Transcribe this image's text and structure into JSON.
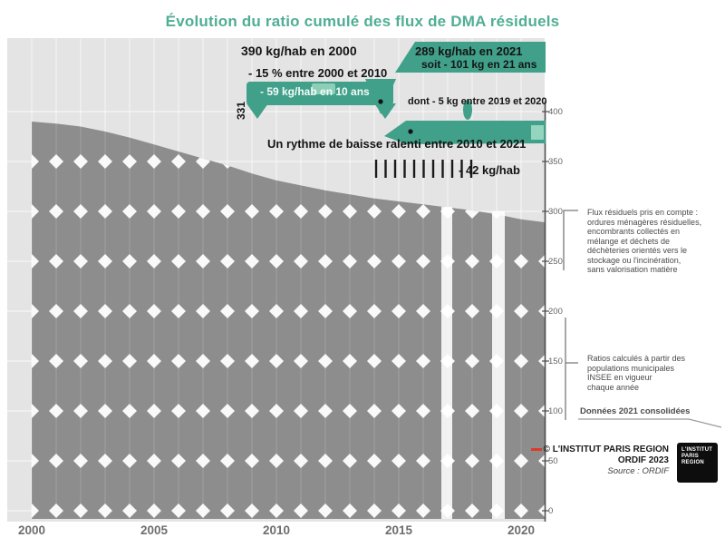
{
  "title": "Évolution du ratio cumulé des flux de DMA résiduels",
  "annotations": {
    "line_a": "390 kg/hab en 2000",
    "box_b_line1": "289 kg/hab en 2021",
    "box_b_line2": "soit - 101 kg en 21 ans",
    "box_a_label": "- 15 % entre 2000 et 2010",
    "box_a_value": "- 59 kg/hab en 10 ans",
    "line_b2": "dont - 5 kg entre 2019 et 2020",
    "line_c1": "Un rythme de baisse ralenti entre 2010 et 2021",
    "line_c2": "- 42 kg/hab",
    "rotated_value": "331"
  },
  "notes": {
    "note1_lines": [
      "Flux résiduels pris en compte :",
      "ordures ménagères résiduelles,",
      "encombrants collectés en",
      "mélange et déchets de",
      "déchèteries orientés vers le",
      "stockage ou l'incinération,",
      "sans valorisation matière"
    ],
    "note2_lines": [
      "Ratios calculés à partir des",
      "populations municipales",
      "INSEE en vigueur",
      "chaque année"
    ],
    "footer": "Données 2021 consolidées"
  },
  "axes": {
    "y": {
      "labels": [
        "400",
        "350",
        "300",
        "250",
        "200",
        "150",
        "100",
        "50",
        "0"
      ]
    },
    "x": {
      "labels": [
        "2000",
        "2005",
        "2010",
        "2015",
        "2020"
      ]
    }
  },
  "credits": {
    "line1": "© L'INSTITUT PARIS REGION",
    "line2": "ORDIF 2023",
    "source": "Source : ORDIF",
    "logo_line1": "L'INSTITUT",
    "logo_line2": "PARIS",
    "logo_line3": "REGION"
  },
  "colors": {
    "teal": "#41a08a",
    "teal_light": "#9fd9c3",
    "title_teal": "#4fae94",
    "area_gray": "#8d8d8d",
    "plot_bg": "#e4e4e4",
    "credit_red": "#e03a27"
  },
  "chart_data": {
    "type": "area",
    "title": "Évolution du ratio cumulé des flux de DMA résiduels",
    "unit": "kg/hab",
    "x": [
      2000,
      2001,
      2002,
      2003,
      2004,
      2005,
      2006,
      2007,
      2008,
      2009,
      2010,
      2011,
      2012,
      2013,
      2014,
      2015,
      2016,
      2017,
      2018,
      2019,
      2020,
      2021
    ],
    "series": [
      {
        "name": "Ratio cumulé des flux de DMA résiduels (kg/hab)",
        "values": [
          390,
          388,
          385,
          380,
          374,
          367,
          360,
          353,
          346,
          338,
          331,
          326,
          321,
          317,
          313,
          310,
          307,
          304,
          301,
          297,
          292,
          289
        ]
      }
    ],
    "ylim": [
      0,
      400
    ],
    "y_tick_step": 50,
    "x_tick_labels": [
      "2000",
      "2005",
      "2010",
      "2015",
      "2020"
    ],
    "grid": true,
    "axis_side": "right",
    "fill_pattern": "gray area with white diamond grid",
    "key_points": {
      "value_2000": 390,
      "value_2010": 331,
      "value_2021": 289,
      "change_2000_2021_kg": -101
    }
  }
}
